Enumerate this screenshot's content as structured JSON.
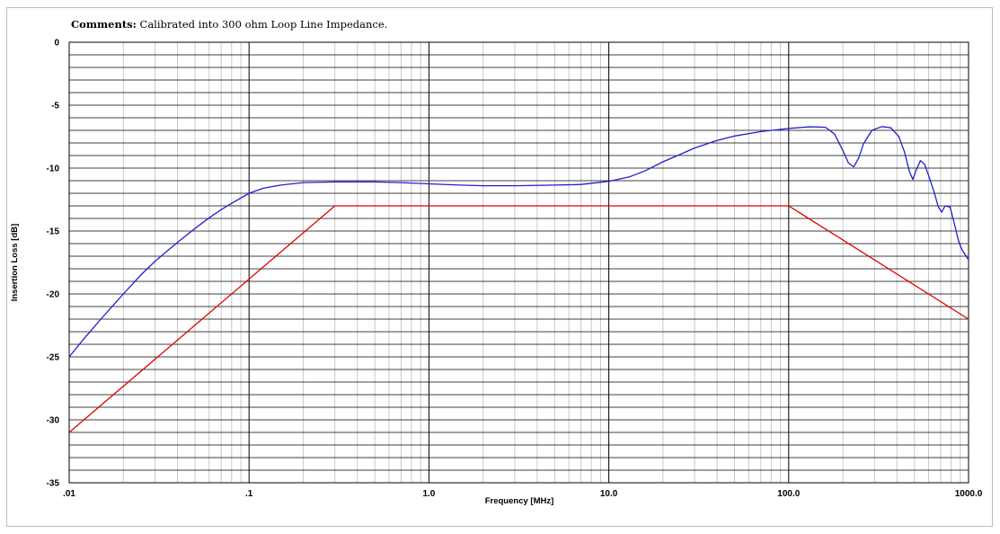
{
  "comment": {
    "label": "Comments:",
    "text": "Calibrated into 300 ohm Loop Line Impedance."
  },
  "chart_data": {
    "type": "line",
    "xlabel": "Frequency [MHz]",
    "ylabel": "Insertion Loss [dB]",
    "xscale": "log",
    "xlim": [
      0.01,
      1000
    ],
    "ylim": [
      -35,
      0
    ],
    "grid": true,
    "legend": "none",
    "x_tick_labels": [
      {
        "value": 0.01,
        "label": ".01"
      },
      {
        "value": 0.1,
        "label": ".1"
      },
      {
        "value": 1,
        "label": "1.0"
      },
      {
        "value": 10,
        "label": "10.0"
      },
      {
        "value": 100,
        "label": "100.0"
      },
      {
        "value": 1000,
        "label": "1000.0"
      }
    ],
    "y_tick_labels": [
      {
        "value": 0,
        "label": "0"
      },
      {
        "value": -5,
        "label": "-5"
      },
      {
        "value": -10,
        "label": "-10"
      },
      {
        "value": -15,
        "label": "-15"
      },
      {
        "value": -20,
        "label": "-20"
      },
      {
        "value": -25,
        "label": "-25"
      },
      {
        "value": -30,
        "label": "-30"
      },
      {
        "value": -35,
        "label": "-35"
      }
    ],
    "series": [
      {
        "color": "#1f1fd0",
        "points": [
          [
            0.01,
            -25.0
          ],
          [
            0.012,
            -23.6
          ],
          [
            0.015,
            -22.0
          ],
          [
            0.02,
            -20.0
          ],
          [
            0.025,
            -18.5
          ],
          [
            0.03,
            -17.4
          ],
          [
            0.04,
            -15.9
          ],
          [
            0.05,
            -14.8
          ],
          [
            0.06,
            -13.95
          ],
          [
            0.07,
            -13.3
          ],
          [
            0.08,
            -12.8
          ],
          [
            0.1,
            -12.0
          ],
          [
            0.12,
            -11.6
          ],
          [
            0.15,
            -11.35
          ],
          [
            0.2,
            -11.15
          ],
          [
            0.3,
            -11.1
          ],
          [
            0.5,
            -11.1
          ],
          [
            0.7,
            -11.15
          ],
          [
            1.0,
            -11.25
          ],
          [
            1.5,
            -11.35
          ],
          [
            2.0,
            -11.4
          ],
          [
            3.0,
            -11.4
          ],
          [
            5.0,
            -11.35
          ],
          [
            7.0,
            -11.3
          ],
          [
            10.0,
            -11.05
          ],
          [
            13.0,
            -10.7
          ],
          [
            16.0,
            -10.2
          ],
          [
            20.0,
            -9.5
          ],
          [
            25.0,
            -8.9
          ],
          [
            30.0,
            -8.4
          ],
          [
            40.0,
            -7.8
          ],
          [
            50.0,
            -7.45
          ],
          [
            70.0,
            -7.1
          ],
          [
            100.0,
            -6.85
          ],
          [
            130.0,
            -6.72
          ],
          [
            160.0,
            -6.75
          ],
          [
            180.0,
            -7.3
          ],
          [
            200.0,
            -8.6
          ],
          [
            215.0,
            -9.6
          ],
          [
            230.0,
            -9.9
          ],
          [
            245.0,
            -9.2
          ],
          [
            260.0,
            -8.1
          ],
          [
            290.0,
            -7.0
          ],
          [
            330.0,
            -6.7
          ],
          [
            370.0,
            -6.8
          ],
          [
            410.0,
            -7.5
          ],
          [
            440.0,
            -8.7
          ],
          [
            470.0,
            -10.3
          ],
          [
            490.0,
            -10.9
          ],
          [
            510.0,
            -10.2
          ],
          [
            540.0,
            -9.4
          ],
          [
            570.0,
            -9.7
          ],
          [
            600.0,
            -10.6
          ],
          [
            640.0,
            -11.8
          ],
          [
            680.0,
            -13.1
          ],
          [
            710.0,
            -13.5
          ],
          [
            740.0,
            -13.0
          ],
          [
            790.0,
            -13.1
          ],
          [
            840.0,
            -14.6
          ],
          [
            880.0,
            -15.8
          ],
          [
            920.0,
            -16.5
          ],
          [
            960.0,
            -16.9
          ],
          [
            1000.0,
            -17.3
          ]
        ]
      },
      {
        "color": "#e00000",
        "points": [
          [
            0.01,
            -31.0
          ],
          [
            0.3,
            -13.0
          ],
          [
            100.0,
            -13.0
          ],
          [
            1000.0,
            -22.0
          ]
        ]
      }
    ]
  }
}
